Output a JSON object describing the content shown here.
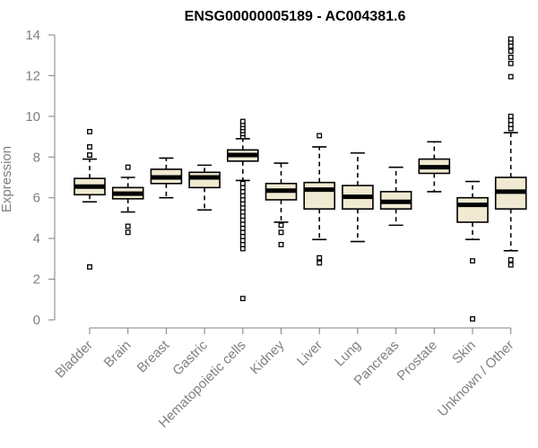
{
  "chart_data": {
    "type": "box",
    "title": "ENSG00000005189 - AC004381.6",
    "ylabel": "Expression",
    "xlabel": "",
    "ylim": [
      0,
      14
    ],
    "yticks": [
      0,
      2,
      4,
      6,
      8,
      10,
      12,
      14
    ],
    "grid": false,
    "box_fill": "#f0ead2",
    "box_stroke": "#000000",
    "axis_color": "#808080",
    "categories": [
      "Bladder",
      "Brain",
      "Breast",
      "Gastric",
      "Hematopoietic cells",
      "Kidney",
      "Liver",
      "Lung",
      "Pancreas",
      "Prostate",
      "Skin",
      "Unknown / Other"
    ],
    "boxes": [
      {
        "category": "Bladder",
        "whisker_low": 5.8,
        "q1": 6.15,
        "median": 6.55,
        "q3": 6.95,
        "whisker_high": 7.9,
        "outliers": [
          2.6,
          8.1,
          8.5,
          9.25
        ]
      },
      {
        "category": "Brain",
        "whisker_low": 5.3,
        "q1": 5.95,
        "median": 6.2,
        "q3": 6.5,
        "whisker_high": 7.0,
        "outliers": [
          4.3,
          4.6,
          7.5
        ]
      },
      {
        "category": "Breast",
        "whisker_low": 6.0,
        "q1": 6.7,
        "median": 7.0,
        "q3": 7.4,
        "whisker_high": 7.95,
        "outliers": []
      },
      {
        "category": "Gastric",
        "whisker_low": 5.4,
        "q1": 6.5,
        "median": 7.0,
        "q3": 7.25,
        "whisker_high": 7.6,
        "outliers": []
      },
      {
        "category": "Hematopoietic cells",
        "whisker_low": 6.85,
        "q1": 7.8,
        "median": 8.1,
        "q3": 8.35,
        "whisker_high": 8.9,
        "outliers": [
          1.05,
          3.5,
          3.7,
          3.9,
          4.1,
          4.3,
          4.5,
          4.7,
          4.9,
          5.1,
          5.3,
          5.5,
          5.7,
          5.9,
          6.1,
          6.3,
          6.5,
          6.7,
          9.0,
          9.15,
          9.3,
          9.45,
          9.6,
          9.75
        ]
      },
      {
        "category": "Kidney",
        "whisker_low": 4.8,
        "q1": 5.9,
        "median": 6.35,
        "q3": 6.7,
        "whisker_high": 7.7,
        "outliers": [
          3.7,
          4.3,
          4.65
        ]
      },
      {
        "category": "Liver",
        "whisker_low": 3.95,
        "q1": 5.45,
        "median": 6.4,
        "q3": 6.75,
        "whisker_high": 8.5,
        "outliers": [
          2.8,
          3.05,
          9.05
        ]
      },
      {
        "category": "Lung",
        "whisker_low": 3.85,
        "q1": 5.45,
        "median": 6.05,
        "q3": 6.6,
        "whisker_high": 8.2,
        "outliers": []
      },
      {
        "category": "Pancreas",
        "whisker_low": 4.65,
        "q1": 5.45,
        "median": 5.8,
        "q3": 6.3,
        "whisker_high": 7.5,
        "outliers": []
      },
      {
        "category": "Prostate",
        "whisker_low": 6.3,
        "q1": 7.2,
        "median": 7.5,
        "q3": 7.9,
        "whisker_high": 8.75,
        "outliers": []
      },
      {
        "category": "Skin",
        "whisker_low": 3.95,
        "q1": 4.8,
        "median": 5.65,
        "q3": 6.0,
        "whisker_high": 6.8,
        "outliers": [
          0.05,
          2.9
        ]
      },
      {
        "category": "Unknown / Other",
        "whisker_low": 3.4,
        "q1": 5.45,
        "median": 6.3,
        "q3": 7.0,
        "whisker_high": 9.2,
        "outliers": [
          2.7,
          2.95,
          9.4,
          9.6,
          9.8,
          10.0,
          11.95,
          12.6,
          12.9,
          13.2,
          13.45,
          13.65,
          13.8
        ]
      }
    ]
  }
}
